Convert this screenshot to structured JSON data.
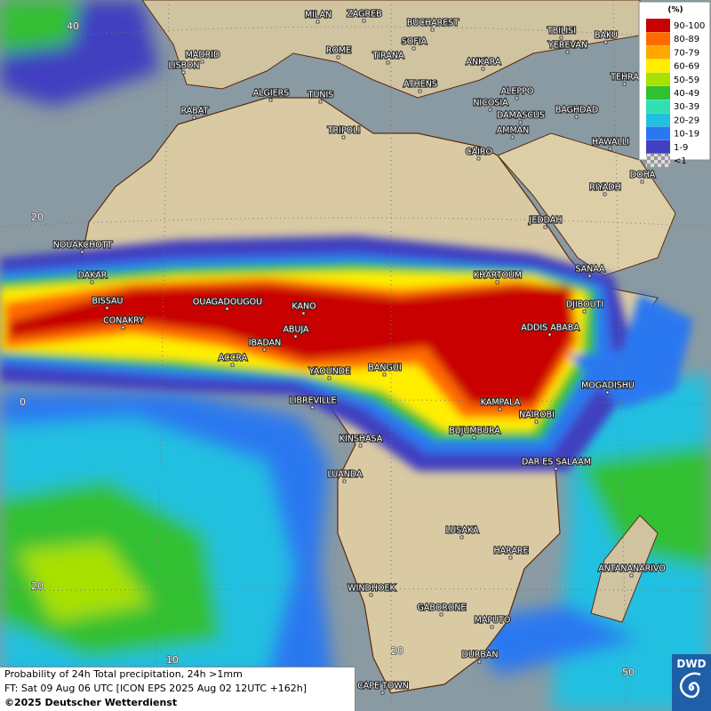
{
  "map": {
    "cities": [
      "MILAN",
      "ZAGREB",
      "BUCHAREST",
      "TBILISI",
      "BAKU",
      "YEREVAN",
      "SOFIA",
      "ROME",
      "TIRANA",
      "MADRID",
      "ANKARA",
      "LISBON",
      "TEHRA",
      "ATHENS",
      "ALGIERS",
      "TUNIS",
      "ALEPPO",
      "RABAT",
      "NICOSIA",
      "BAGHDAD",
      "DAMASCUS",
      "AMMAN",
      "TRIPOLI",
      "HAWALLI",
      "CAIRO",
      "DOHA",
      "RIYADH",
      "JEDDAH",
      "NOUAKCHOTT",
      "KHARTOUM",
      "SANAA",
      "DAKAR",
      "BISSAU",
      "OUAGADOUGOU",
      "KANO",
      "DJIBOUTI",
      "CONAKRY",
      "ABUJA",
      "ADDIS ABABA",
      "IBADAN",
      "ACCRA",
      "YAOUNDE",
      "BANGUI",
      "MOGADISHU",
      "LIBREVILLE",
      "KAMPALA",
      "NAIROBI",
      "BUJUMBURA",
      "KINSHASA",
      "DAR ES SALAAM",
      "LUANDA",
      "LUSAKA",
      "HARARE",
      "ANTANANARIVO",
      "WINDHOEK",
      "GABORONE",
      "MAPUTO",
      "DURBAN",
      "CAPE TOWN"
    ],
    "grid_labels": [
      "40",
      "20",
      "0",
      "20",
      "10",
      "20",
      "50"
    ],
    "legend": {
      "title": "(%)",
      "items": [
        {
          "label": "90-100",
          "color": "#c80000"
        },
        {
          "label": "80-89",
          "color": "#ff6a00"
        },
        {
          "label": "70-79",
          "color": "#ffa800"
        },
        {
          "label": "60-69",
          "color": "#ffee00"
        },
        {
          "label": "50-59",
          "color": "#a8e000"
        },
        {
          "label": "40-49",
          "color": "#30c030"
        },
        {
          "label": "30-39",
          "color": "#30e0b0"
        },
        {
          "label": "20-29",
          "color": "#20c0e0"
        },
        {
          "label": "10-19",
          "color": "#2a78f0"
        },
        {
          "label": "1-9",
          "color": "#4040c0"
        },
        {
          "label": "<1",
          "color": "checker"
        }
      ]
    },
    "footer": {
      "line1": "Probability of 24h Total precipitation, 24h >1mm",
      "line2": "FT: Sat 09 Aug 06 UTC [ICON EPS 2025 Aug 02 12UTC +162h]",
      "line3": "©2025 Deutscher Wetterdienst"
    },
    "logo": "DWD"
  }
}
